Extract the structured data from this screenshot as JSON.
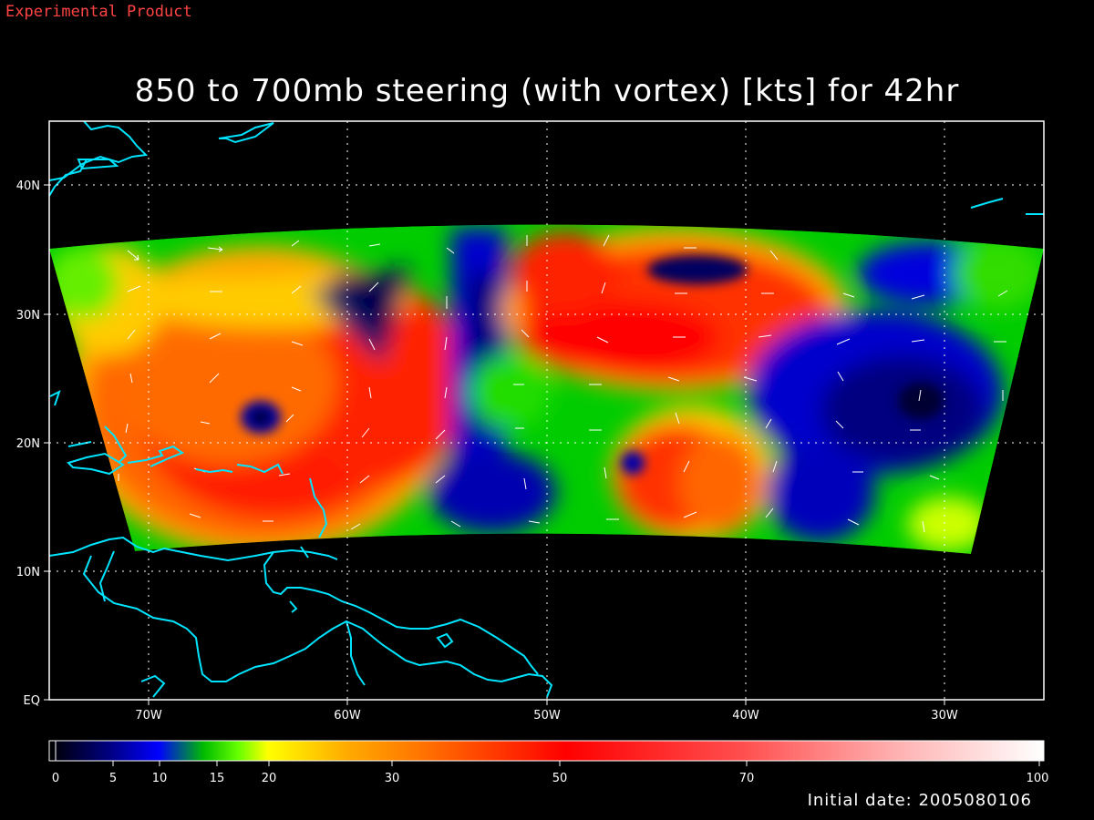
{
  "header": {
    "experimental_label": "Experimental Product",
    "title": "850 to 700mb steering (with vortex) [kts] for 42hr"
  },
  "footer": {
    "initial_date": "Initial date: 2005080106"
  },
  "map": {
    "lat_labels": [
      "40N",
      "30N",
      "20N",
      "10N",
      "EQ"
    ],
    "lon_labels": [
      "70W",
      "60W",
      "50W",
      "40W",
      "30W"
    ],
    "coastline_color": "#00e5ff",
    "grid_color": "#ffffff"
  },
  "colorbar": {
    "tick_labels": [
      "0",
      "5",
      "10",
      "15",
      "20",
      "30",
      "50",
      "70",
      "100"
    ],
    "colors": {
      "0": "#000000",
      "5": "#000090",
      "10": "#0000ff",
      "15": "#00ff00",
      "20": "#ffff00",
      "30": "#ff9900",
      "50": "#ff0000",
      "70": "#ff7070",
      "100": "#ffffff"
    }
  }
}
